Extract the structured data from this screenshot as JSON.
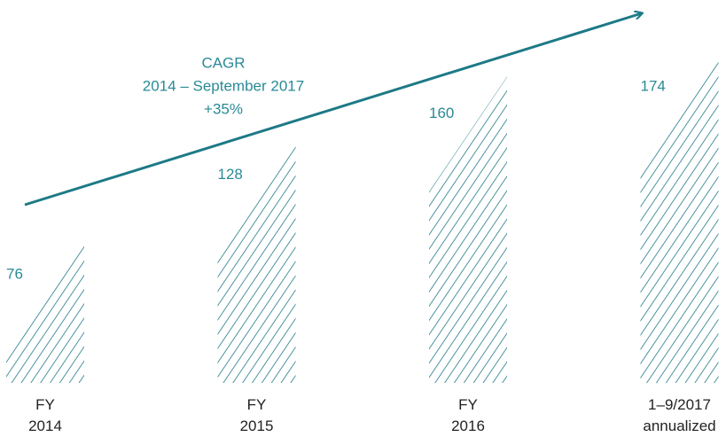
{
  "chart_data": {
    "type": "bar",
    "categories": [
      [
        "FY",
        "2014"
      ],
      [
        "FY",
        "2015"
      ],
      [
        "FY",
        "2016"
      ],
      [
        "1–9/2017",
        "annualized"
      ]
    ],
    "values": [
      76,
      128,
      160,
      174
    ],
    "color": "#1d7a86",
    "ylim": [
      0,
      200
    ],
    "annotation": [
      "CAGR",
      "2014 – September 2017",
      "+35%"
    ]
  }
}
